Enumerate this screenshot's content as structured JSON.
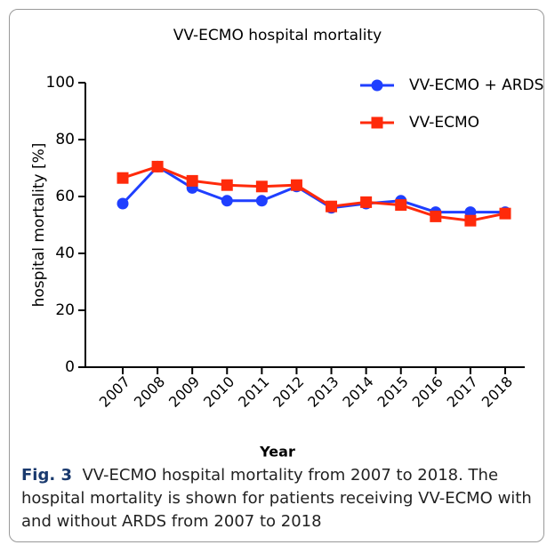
{
  "chart_data": {
    "type": "line",
    "title": "VV-ECMO hospital mortality",
    "x_label": "Year",
    "y_label": "hospital mortality [%]",
    "categories": [
      "2007",
      "2008",
      "2009",
      "2010",
      "2011",
      "2012",
      "2013",
      "2014",
      "2015",
      "2016",
      "2017",
      "2018"
    ],
    "series": [
      {
        "name": "VV-ECMO + ARDS",
        "color": "#1f3fff",
        "marker": "circle",
        "values": [
          57.5,
          70.5,
          63,
          58.5,
          58.5,
          63.5,
          56,
          57.5,
          58.5,
          54.5,
          54.5,
          54.5
        ]
      },
      {
        "name": "VV-ECMO",
        "color": "#ff2a0a",
        "marker": "square",
        "values": [
          66.5,
          70.5,
          65.5,
          64,
          63.5,
          64,
          56.5,
          58,
          57,
          53,
          51.5,
          54
        ]
      }
    ],
    "ylim": [
      0,
      100
    ],
    "yticks": [
      0,
      20,
      40,
      60,
      80,
      100
    ],
    "legend": "top-right",
    "caption_label": "Fig. 3",
    "caption_text": "VV-ECMO hospital mortality from 2007 to 2018. The hospital mortality is shown for patients receiving VV-ECMO with and without ARDS from 2007 to 2018"
  }
}
